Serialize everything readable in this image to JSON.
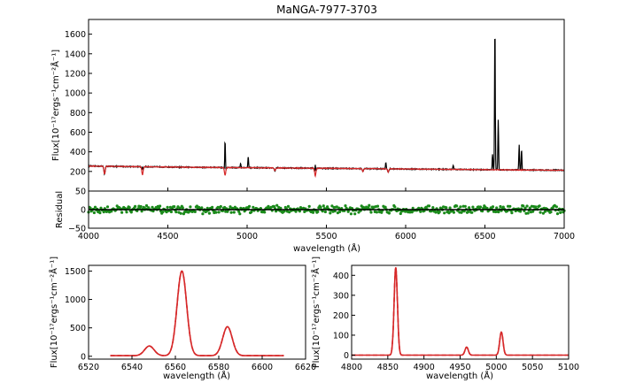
{
  "title": "MaNGA-7977-3703",
  "chart_data": [
    {
      "type": "line",
      "panel": "main spectrum",
      "xlim": [
        4000,
        7000
      ],
      "ylim": [
        0,
        1750
      ],
      "xticks": [
        4000,
        4500,
        5000,
        5500,
        6000,
        6500,
        7000
      ],
      "yticks": [
        200,
        400,
        600,
        800,
        1000,
        1200,
        1400,
        1600
      ],
      "ylabel": "Flux[10$^{-17}$ergs$^{-1}$cm$^{-2}$Å$^{-1}$]",
      "ylabel_display": "Flux[10⁻¹⁷ergs⁻¹cm⁻²Å⁻¹]",
      "continuum": {
        "x": [
          4000,
          4500,
          5000,
          5500,
          6000,
          6500,
          7000
        ],
        "y": [
          255,
          245,
          238,
          232,
          225,
          218,
          212
        ]
      },
      "emission_lines": [
        {
          "x": 4340,
          "peak": 335
        },
        {
          "x": 4861,
          "peak": 600
        },
        {
          "x": 4959,
          "peak": 280
        },
        {
          "x": 5007,
          "peak": 350
        },
        {
          "x": 5430,
          "peak": 345
        },
        {
          "x": 5875,
          "peak": 290
        },
        {
          "x": 6300,
          "peak": 265
        },
        {
          "x": 6548,
          "peak": 380
        },
        {
          "x": 6563,
          "peak": 1690
        },
        {
          "x": 6584,
          "peak": 730
        },
        {
          "x": 6716,
          "peak": 470
        },
        {
          "x": 6731,
          "peak": 420
        }
      ],
      "absorption_lines": [
        {
          "x": 4101,
          "depth": 175
        },
        {
          "x": 4340,
          "depth": 165
        },
        {
          "x": 4861,
          "depth": 160
        },
        {
          "x": 5175,
          "depth": 205
        },
        {
          "x": 5430,
          "depth": 155
        },
        {
          "x": 5730,
          "depth": 200
        },
        {
          "x": 5890,
          "depth": 195
        }
      ],
      "series": [
        {
          "color": "#000000"
        },
        {
          "color": "#d62728"
        }
      ]
    },
    {
      "type": "scatter",
      "panel": "residual",
      "xlim": [
        4000,
        7000
      ],
      "ylim": [
        -50,
        50
      ],
      "xticks": [
        4000,
        4500,
        5000,
        5500,
        6000,
        6500,
        7000
      ],
      "yticks": [
        -50,
        0,
        50
      ],
      "xlabel": "wavelength (Å)",
      "ylabel": "Residual",
      "series": [
        {
          "color": "#1a8a1a"
        },
        {
          "color": "#000000"
        }
      ]
    },
    {
      "type": "line",
      "panel": "Halpha zoom",
      "xlim": [
        6520,
        6620
      ],
      "ylim": [
        -50,
        1600
      ],
      "xticks": [
        6520,
        6540,
        6560,
        6580,
        6600,
        6620
      ],
      "yticks": [
        0,
        500,
        1000,
        1500
      ],
      "xlabel": "wavelength (Å)",
      "ylabel": "Flux[10$^{-17}$ergs$^{-1}$cm$^{-2}$Å$^{-1}$]",
      "ylabel_display": "Flux[10⁻¹⁷ergs⁻¹cm⁻²Å⁻¹]",
      "x_range_drawn": [
        6530,
        6610
      ],
      "baseline": 10,
      "peaks": [
        {
          "x": 6548,
          "height": 170,
          "sigma": 2.2
        },
        {
          "x": 6563,
          "height": 1490,
          "sigma": 2.2
        },
        {
          "x": 6584,
          "height": 510,
          "sigma": 2.2
        }
      ],
      "series": [
        {
          "color": "#d62728"
        },
        {
          "color": "#d62728"
        }
      ]
    },
    {
      "type": "line",
      "panel": "Hbeta zoom",
      "xlim": [
        4800,
        5100
      ],
      "ylim": [
        -20,
        450
      ],
      "xticks": [
        4800,
        4850,
        4900,
        4950,
        5000,
        5050,
        5100
      ],
      "yticks": [
        0,
        100,
        200,
        300,
        400
      ],
      "xlabel": "wavelength (Å)",
      "ylabel": "Flux[10$^{-17}$ergs$^{-1}$cm$^{-2}$Å$^{-1}$]",
      "ylabel_display": "Flux[10⁻¹⁷ergs⁻¹cm⁻²Å⁻¹]",
      "x_range_drawn": [
        4800,
        5100
      ],
      "baseline": 0,
      "peaks": [
        {
          "x": 4861,
          "height": 440,
          "sigma": 2.3
        },
        {
          "x": 4959,
          "height": 40,
          "sigma": 2.3
        },
        {
          "x": 5007,
          "height": 115,
          "sigma": 2.3
        }
      ],
      "series": [
        {
          "color": "#d62728"
        },
        {
          "color": "#d62728"
        }
      ]
    }
  ]
}
